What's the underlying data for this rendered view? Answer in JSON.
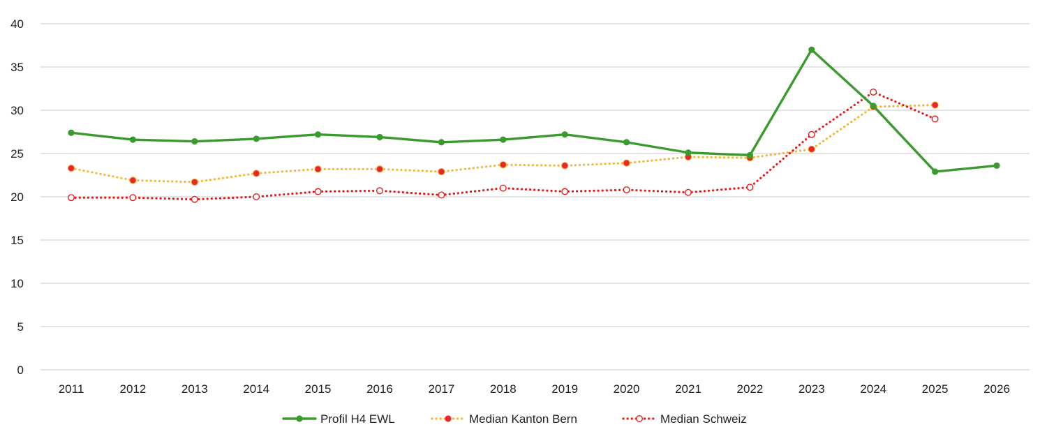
{
  "chart_data": {
    "type": "line",
    "title": "",
    "xlabel": "",
    "ylabel": "",
    "ylim": [
      0,
      40
    ],
    "y_ticks": [
      0,
      5,
      10,
      15,
      20,
      25,
      30,
      35,
      40
    ],
    "grid": true,
    "legend_position": "bottom",
    "categories": [
      "2011",
      "2012",
      "2013",
      "2014",
      "2015",
      "2016",
      "2017",
      "2018",
      "2019",
      "2020",
      "2021",
      "2022",
      "2023",
      "2024",
      "2025",
      "2026"
    ],
    "series": [
      {
        "name": "Profil H4 EWL",
        "color": "#3a9a2e",
        "line_style": "solid",
        "marker": "filled-circle",
        "values": [
          27.4,
          26.6,
          26.4,
          26.7,
          27.2,
          26.9,
          26.3,
          26.6,
          27.2,
          26.3,
          25.1,
          24.8,
          37.0,
          30.5,
          22.9,
          23.6
        ]
      },
      {
        "name": "Median Kanton Bern",
        "color": "#f5b731",
        "marker_color": "#e8262b",
        "line_style": "dotted",
        "marker": "filled-circle",
        "values": [
          23.3,
          21.9,
          21.7,
          22.7,
          23.2,
          23.2,
          22.9,
          23.7,
          23.6,
          23.9,
          24.6,
          24.5,
          25.5,
          30.4,
          30.6,
          null
        ]
      },
      {
        "name": "Median Schweiz",
        "color": "#e51b1b",
        "line_style": "dotted",
        "marker": "open-circle",
        "values": [
          19.9,
          19.9,
          19.7,
          20.0,
          20.6,
          20.7,
          20.2,
          21.0,
          20.6,
          20.8,
          20.5,
          21.1,
          27.2,
          32.1,
          29.0,
          null
        ]
      }
    ]
  }
}
